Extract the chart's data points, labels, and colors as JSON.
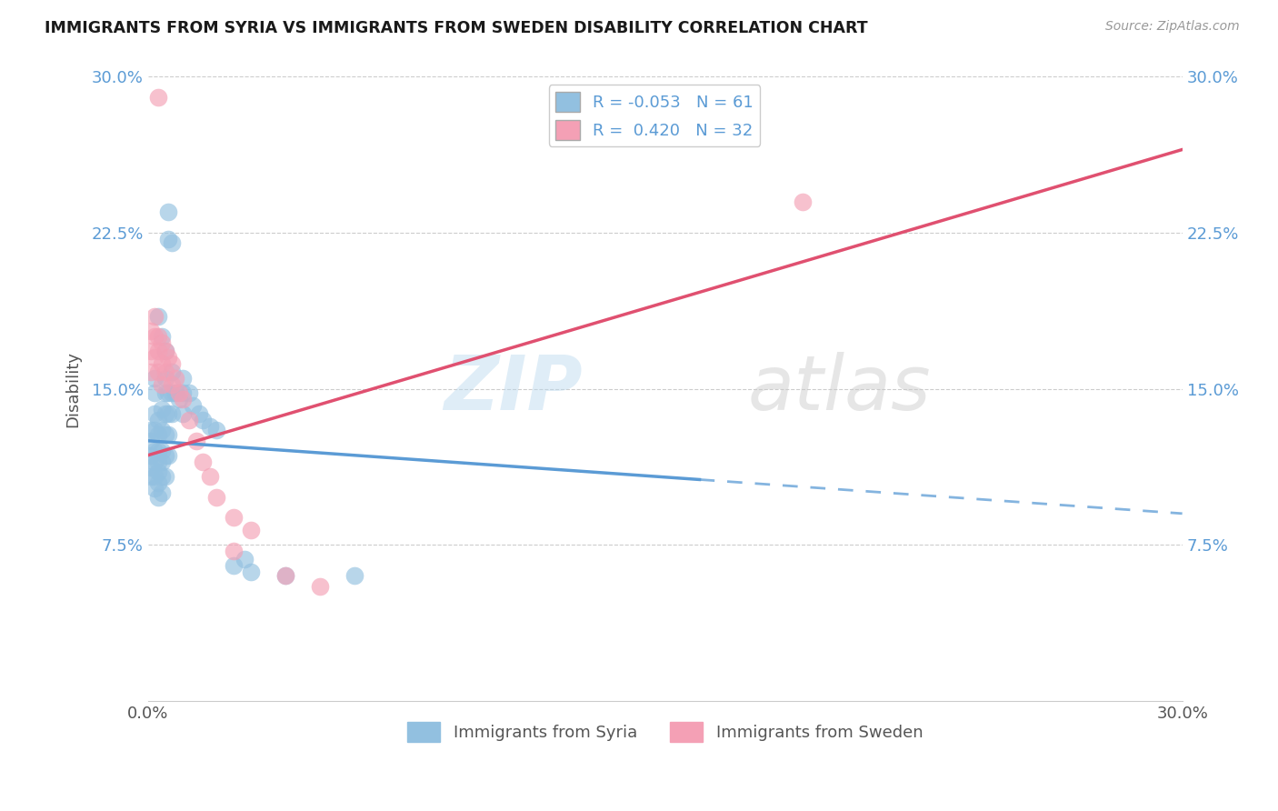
{
  "title": "IMMIGRANTS FROM SYRIA VS IMMIGRANTS FROM SWEDEN DISABILITY CORRELATION CHART",
  "source": "Source: ZipAtlas.com",
  "ylabel": "Disability",
  "yticks": [
    0.075,
    0.15,
    0.225,
    0.3
  ],
  "ytick_labels": [
    "7.5%",
    "15.0%",
    "22.5%",
    "30.0%"
  ],
  "xlim": [
    0.0,
    0.3
  ],
  "ylim": [
    0.0,
    0.3
  ],
  "syria_color": "#92C0E0",
  "sweden_color": "#F4A0B5",
  "syria_line_color": "#5B9BD5",
  "sweden_line_color": "#E05070",
  "syria_line_x0": 0.0,
  "syria_line_x_solid_end": 0.16,
  "syria_line_x1": 0.3,
  "syria_line_y0": 0.125,
  "syria_line_y1": 0.09,
  "sweden_line_x0": 0.0,
  "sweden_line_x1": 0.3,
  "sweden_line_y0": 0.118,
  "sweden_line_y1": 0.265,
  "watermark": "ZIPatlas",
  "background_color": "#FFFFFF",
  "grid_color": "#CCCCCC",
  "syria_scatter": [
    [
      0.001,
      0.13
    ],
    [
      0.001,
      0.125
    ],
    [
      0.001,
      0.118
    ],
    [
      0.001,
      0.112
    ],
    [
      0.001,
      0.108
    ],
    [
      0.002,
      0.155
    ],
    [
      0.002,
      0.148
    ],
    [
      0.002,
      0.138
    ],
    [
      0.002,
      0.13
    ],
    [
      0.002,
      0.12
    ],
    [
      0.002,
      0.115
    ],
    [
      0.002,
      0.108
    ],
    [
      0.002,
      0.102
    ],
    [
      0.003,
      0.185
    ],
    [
      0.003,
      0.135
    ],
    [
      0.003,
      0.128
    ],
    [
      0.003,
      0.12
    ],
    [
      0.003,
      0.115
    ],
    [
      0.003,
      0.11
    ],
    [
      0.003,
      0.105
    ],
    [
      0.003,
      0.098
    ],
    [
      0.004,
      0.175
    ],
    [
      0.004,
      0.14
    ],
    [
      0.004,
      0.13
    ],
    [
      0.004,
      0.12
    ],
    [
      0.004,
      0.115
    ],
    [
      0.004,
      0.108
    ],
    [
      0.004,
      0.1
    ],
    [
      0.005,
      0.168
    ],
    [
      0.005,
      0.155
    ],
    [
      0.005,
      0.148
    ],
    [
      0.005,
      0.138
    ],
    [
      0.005,
      0.128
    ],
    [
      0.005,
      0.118
    ],
    [
      0.005,
      0.108
    ],
    [
      0.006,
      0.235
    ],
    [
      0.006,
      0.222
    ],
    [
      0.006,
      0.148
    ],
    [
      0.006,
      0.138
    ],
    [
      0.006,
      0.128
    ],
    [
      0.006,
      0.118
    ],
    [
      0.007,
      0.22
    ],
    [
      0.007,
      0.158
    ],
    [
      0.007,
      0.148
    ],
    [
      0.007,
      0.138
    ],
    [
      0.008,
      0.148
    ],
    [
      0.009,
      0.145
    ],
    [
      0.01,
      0.155
    ],
    [
      0.01,
      0.148
    ],
    [
      0.01,
      0.138
    ],
    [
      0.012,
      0.148
    ],
    [
      0.013,
      0.142
    ],
    [
      0.015,
      0.138
    ],
    [
      0.016,
      0.135
    ],
    [
      0.018,
      0.132
    ],
    [
      0.02,
      0.13
    ],
    [
      0.025,
      0.065
    ],
    [
      0.028,
      0.068
    ],
    [
      0.03,
      0.062
    ],
    [
      0.04,
      0.06
    ],
    [
      0.06,
      0.06
    ]
  ],
  "sweden_scatter": [
    [
      0.001,
      0.178
    ],
    [
      0.001,
      0.168
    ],
    [
      0.001,
      0.158
    ],
    [
      0.002,
      0.185
    ],
    [
      0.002,
      0.175
    ],
    [
      0.002,
      0.165
    ],
    [
      0.003,
      0.175
    ],
    [
      0.003,
      0.168
    ],
    [
      0.003,
      0.158
    ],
    [
      0.004,
      0.172
    ],
    [
      0.004,
      0.162
    ],
    [
      0.004,
      0.152
    ],
    [
      0.005,
      0.168
    ],
    [
      0.005,
      0.158
    ],
    [
      0.006,
      0.165
    ],
    [
      0.007,
      0.162
    ],
    [
      0.007,
      0.152
    ],
    [
      0.008,
      0.155
    ],
    [
      0.009,
      0.148
    ],
    [
      0.01,
      0.145
    ],
    [
      0.012,
      0.135
    ],
    [
      0.014,
      0.125
    ],
    [
      0.016,
      0.115
    ],
    [
      0.018,
      0.108
    ],
    [
      0.02,
      0.098
    ],
    [
      0.025,
      0.088
    ],
    [
      0.025,
      0.072
    ],
    [
      0.03,
      0.082
    ],
    [
      0.003,
      0.29
    ],
    [
      0.19,
      0.24
    ],
    [
      0.04,
      0.06
    ],
    [
      0.05,
      0.055
    ]
  ],
  "legend_text": [
    [
      "R = -0.053",
      "N = 61"
    ],
    [
      "R =  0.420",
      "N = 32"
    ]
  ],
  "bottom_legend": [
    "Immigrants from Syria",
    "Immigrants from Sweden"
  ]
}
